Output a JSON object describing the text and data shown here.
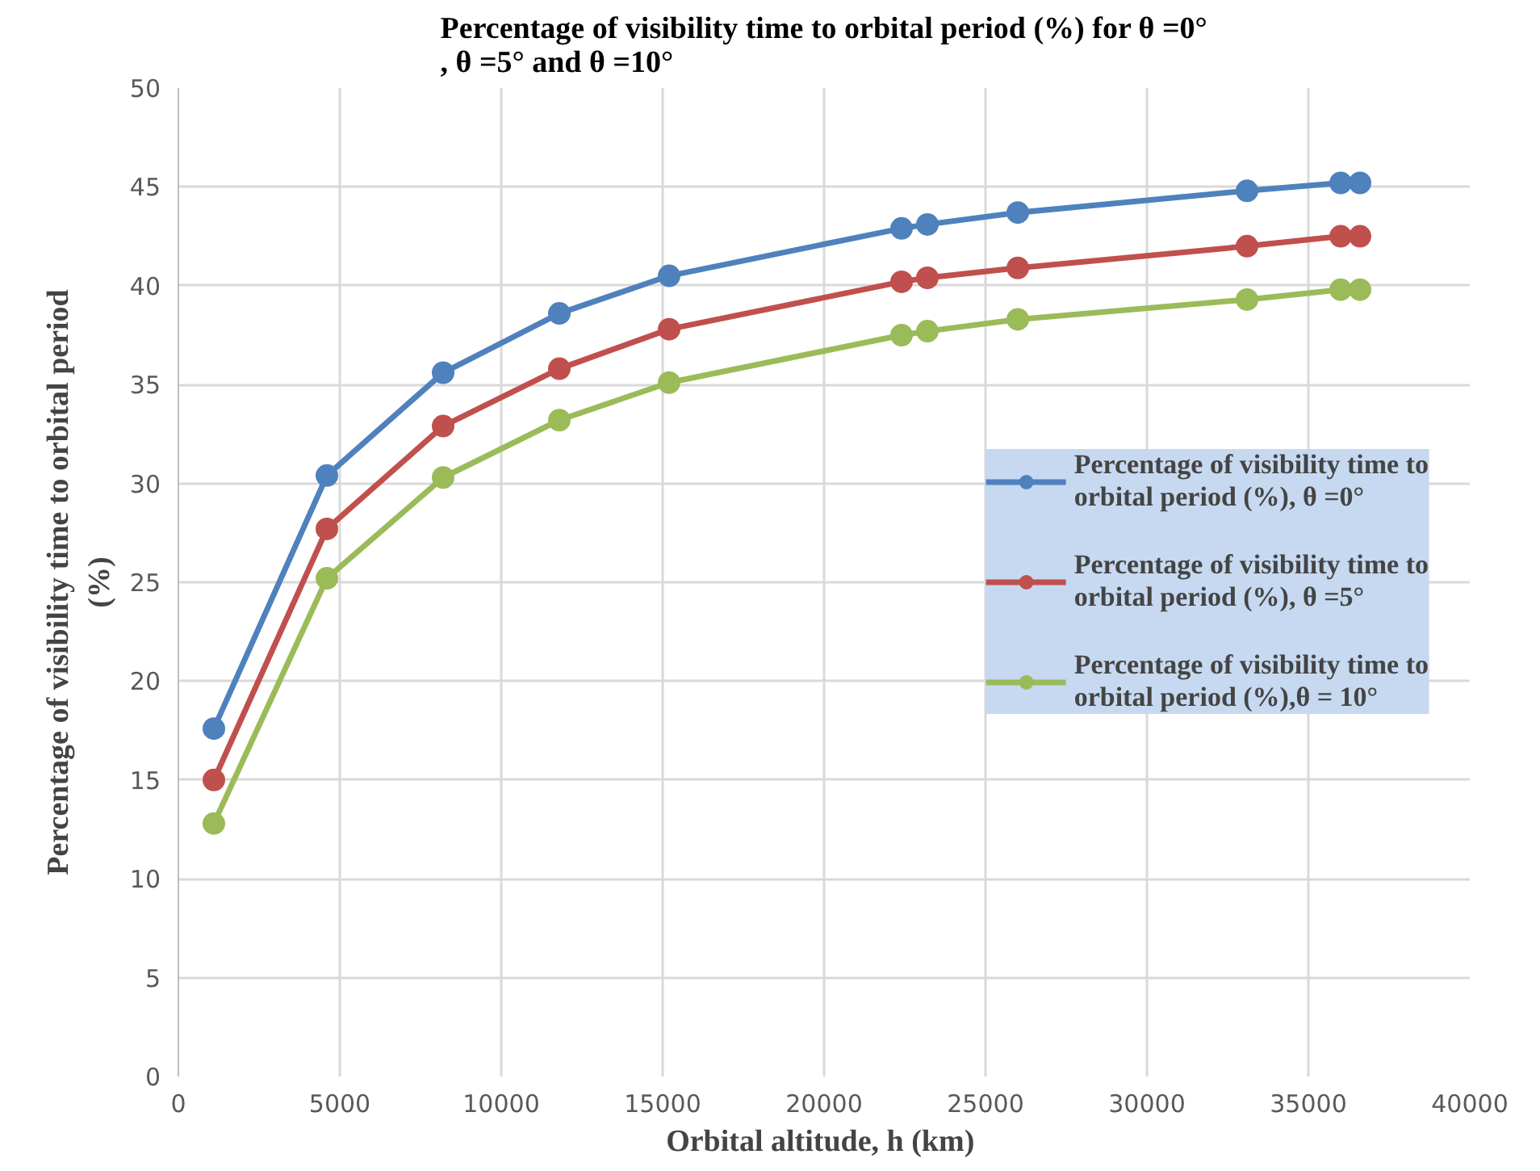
{
  "chart_data": {
    "type": "line",
    "title": "Percentage of visibility time to orbital period (%) for θ =0° , θ =5° and θ =10°",
    "xlabel": "Orbital  altitude, h (km)",
    "ylabel": "Percentage of visibility time to orbital period (%)",
    "x": [
      1100,
      4600,
      8200,
      11800,
      15200,
      22400,
      23200,
      26000,
      33100,
      36000,
      36600
    ],
    "series": [
      {
        "name": "Percentage of visibility time to orbital period (%), θ =0°",
        "color": "#4f81bd",
        "values": [
          17.6,
          30.4,
          35.6,
          38.6,
          40.5,
          42.9,
          43.1,
          43.7,
          44.8,
          45.2,
          45.2
        ]
      },
      {
        "name": "Percentage of visibility time to orbital period (%), θ =5°",
        "color": "#c0504d",
        "values": [
          15.0,
          27.7,
          32.9,
          35.8,
          37.8,
          40.2,
          40.4,
          40.9,
          42.0,
          42.5,
          42.5
        ]
      },
      {
        "name": "Percentage of visibility time to orbital period (%),θ = 10°",
        "color": "#9bbb59",
        "values": [
          12.8,
          25.2,
          30.3,
          33.2,
          35.1,
          37.5,
          37.7,
          38.3,
          39.3,
          39.8,
          39.8
        ]
      }
    ],
    "xlim": [
      0,
      40000
    ],
    "xticks": [
      0,
      5000,
      10000,
      15000,
      20000,
      25000,
      30000,
      35000,
      40000
    ],
    "ylim": [
      0,
      50
    ],
    "yticks": [
      0,
      5,
      10,
      15,
      20,
      25,
      30,
      35,
      40,
      45,
      50
    ],
    "grid": true,
    "legend": "right",
    "marker": "circle",
    "line_style": "solid"
  }
}
